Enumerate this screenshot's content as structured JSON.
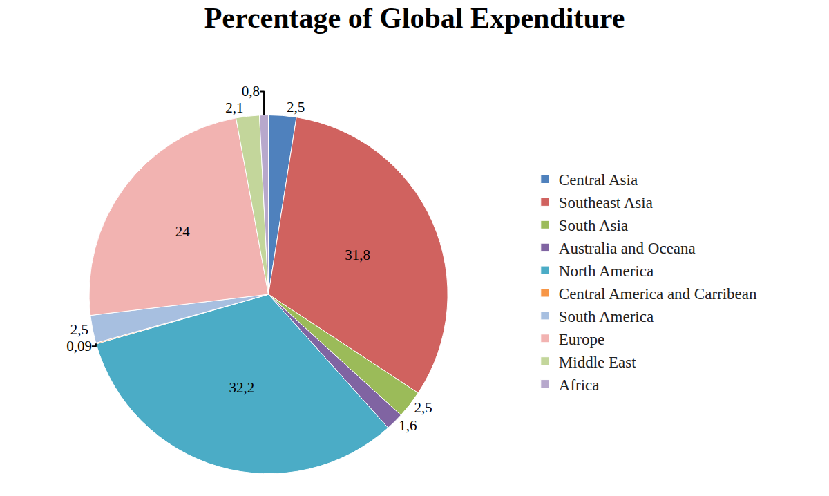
{
  "chart_data": {
    "type": "pie",
    "title": "Percentage of Global Expenditure",
    "categories": [
      "Central Asia",
      "Southeast Asia",
      "South Asia",
      "Australia and Oceana",
      "North America",
      "Central America and Carribean",
      "South America",
      "Europe",
      "Middle East",
      "Africa"
    ],
    "values": [
      2.5,
      31.8,
      2.5,
      1.6,
      32.2,
      0.09,
      2.5,
      24,
      2.1,
      0.8
    ],
    "value_labels": [
      "2,5",
      "31,8",
      "2,5",
      "1,6",
      "32,2",
      "0,09",
      "2,5",
      "24",
      "2,1",
      "0,8"
    ],
    "colors": [
      "#4f81bd",
      "#d0625f",
      "#9bbb59",
      "#8064a2",
      "#4bacc6",
      "#f79646",
      "#a7bfe0",
      "#f2b3b1",
      "#c3d69b",
      "#b7a8cc"
    ],
    "data_labels": true,
    "legend": "right"
  }
}
